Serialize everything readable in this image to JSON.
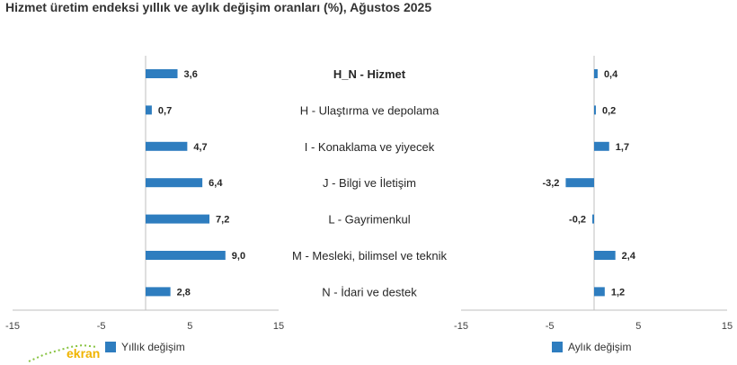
{
  "title": "Hizmet üretim endeksi yıllık ve aylık değişim oranları (%), Ağustos 2025",
  "colors": {
    "bar": "#2e7dbf",
    "axis": "#bfbfbf",
    "text": "#262626"
  },
  "logo": {
    "text": "ekran"
  },
  "chart_data": [
    {
      "type": "bar",
      "orientation": "horizontal",
      "categories": [
        "H_N - Hizmet",
        "H - Ulaştırma ve depolama",
        "I - Konaklama ve yiyecek",
        "J - Bilgi ve İletişim",
        "L - Gayrimenkul",
        "M - Mesleki, bilimsel ve teknik",
        "N - İdari ve destek"
      ],
      "series": [
        {
          "name": "Yıllık değişim",
          "values": [
            3.6,
            0.7,
            4.7,
            6.4,
            7.2,
            9.0,
            2.8
          ]
        }
      ],
      "data_labels": [
        "3,6",
        "0,7",
        "4,7",
        "6,4",
        "7,2",
        "9,0",
        "2,8"
      ],
      "xlim": [
        -15,
        15
      ],
      "ticks": [
        "-15",
        "-5",
        "5",
        "15"
      ],
      "legend": "bottom"
    },
    {
      "type": "bar",
      "orientation": "horizontal",
      "categories": [
        "H_N - Hizmet",
        "H - Ulaştırma ve depolama",
        "I - Konaklama ve yiyecek",
        "J - Bilgi ve İletişim",
        "L - Gayrimenkul",
        "M - Mesleki, bilimsel ve teknik",
        "N - İdari ve destek"
      ],
      "series": [
        {
          "name": "Aylık değişim",
          "values": [
            0.4,
            0.2,
            1.7,
            -3.2,
            -0.2,
            2.4,
            1.2
          ]
        }
      ],
      "data_labels": [
        "0,4",
        "0,2",
        "1,7",
        "-3,2",
        "-0,2",
        "2,4",
        "1,2"
      ],
      "xlim": [
        -15,
        15
      ],
      "ticks": [
        "-15",
        "-5",
        "5",
        "15"
      ],
      "legend": "bottom"
    }
  ]
}
